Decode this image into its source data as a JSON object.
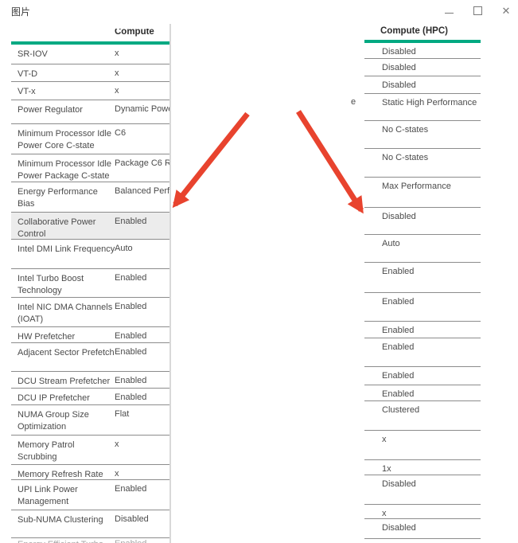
{
  "window": {
    "title": "图片",
    "controls": {
      "minimize": "minimize-icon",
      "maximize": "maximize-icon",
      "close": "close-icon"
    }
  },
  "left_table": {
    "header": "Compute",
    "rows": [
      {
        "label": "SR-IOV",
        "value": "x"
      },
      {
        "label": "VT-D",
        "value": "x"
      },
      {
        "label": "VT-x",
        "value": "x"
      },
      {
        "label": "Power Regulator",
        "value": "Dynamic Powe"
      },
      {
        "label": "Minimum Processor Idle Power Core C-state",
        "value": "C6"
      },
      {
        "label": "Minimum Processor Idle Power Package C-state",
        "value": "Package C6 R"
      },
      {
        "label": "Energy Performance Bias",
        "value": "Balanced Perf"
      },
      {
        "label": "Collaborative Power Control",
        "value": "Enabled",
        "highlighted": true
      },
      {
        "label": "Intel DMI Link Frequency",
        "value": "Auto"
      },
      {
        "label": "Intel Turbo Boost Technology",
        "value": "Enabled"
      },
      {
        "label": "Intel NIC DMA Channels (IOAT)",
        "value": "Enabled"
      },
      {
        "label": "HW Prefetcher",
        "value": "Enabled"
      },
      {
        "label": "Adjacent Sector Prefetch",
        "value": "Enabled"
      },
      {
        "label": "DCU Stream Prefetcher",
        "value": "Enabled"
      },
      {
        "label": "DCU IP Prefetcher",
        "value": "Enabled"
      },
      {
        "label": "NUMA Group Size Optimization",
        "value": "Flat"
      },
      {
        "label": "Memory Patrol Scrubbing",
        "value": "x"
      },
      {
        "label": "Memory Refresh Rate",
        "value": "x"
      },
      {
        "label": "UPI Link Power Management",
        "value": "Enabled"
      },
      {
        "label": "Sub-NUMA Clustering",
        "value": "Disabled"
      },
      {
        "label": "Energy Efficient Turbo",
        "value": "Enabled",
        "partial": true
      }
    ]
  },
  "right_table": {
    "header": "Compute (HPC)",
    "values": [
      "Disabled",
      "Disabled",
      "Disabled",
      "Static High Performance",
      "No C-states",
      "No C-states",
      "Max Performance",
      "Disabled",
      "Auto",
      "Enabled",
      "Enabled",
      "Enabled",
      "Enabled",
      "Enabled",
      "Enabled",
      "Clustered",
      "x",
      "1x",
      "Disabled",
      "x",
      "Disabled"
    ]
  },
  "cropped_fragment": "e",
  "colors": {
    "accent_green": "#01a982",
    "arrow_red": "#e8432e",
    "highlight_gray": "#ececec",
    "rule_gray": "#8c8c8c"
  }
}
